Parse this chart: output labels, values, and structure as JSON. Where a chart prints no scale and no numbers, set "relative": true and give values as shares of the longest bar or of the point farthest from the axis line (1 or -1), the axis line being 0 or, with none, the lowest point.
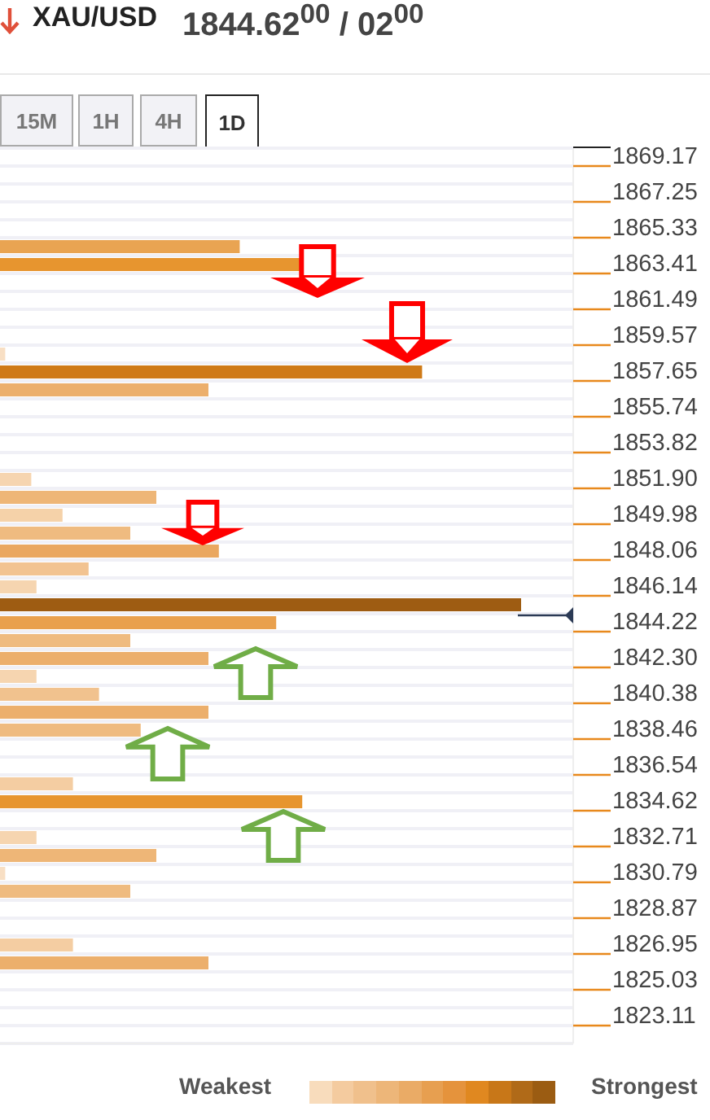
{
  "chart_data": {
    "type": "bar",
    "orientation": "horizontal",
    "relative": true,
    "title": "XAU/USD",
    "annotations": [
      "1844.62$^{00}$ / 02$^{00}$",
      "15M",
      "1H",
      "4H",
      "1D",
      "Weakest",
      "Strongest"
    ],
    "categories": [
      "1869.17",
      null,
      "1867.25",
      null,
      "1865.33",
      null,
      "1863.41",
      null,
      "1861.49",
      null,
      "1859.57",
      null,
      "1857.65",
      null,
      "1855.74",
      null,
      "1853.82",
      null,
      "1851.90",
      null,
      "1849.98",
      null,
      "1848.06",
      null,
      "1846.14",
      null,
      "1844.22",
      null,
      "1842.30",
      null,
      "1840.38",
      null,
      "1838.46",
      null,
      "1836.54",
      null,
      "1834.62",
      null,
      "1832.71",
      null,
      "1830.79",
      null,
      "1828.87",
      null,
      "1826.95",
      null,
      "1825.03",
      null,
      "1823.11",
      null
    ],
    "values": [
      null,
      null,
      null,
      null,
      null,
      0.46,
      0.58,
      null,
      null,
      null,
      null,
      0.01,
      0.81,
      0.4,
      null,
      null,
      null,
      null,
      0.06,
      0.3,
      0.12,
      0.25,
      0.42,
      0.17,
      0.07,
      1,
      0.53,
      0.25,
      0.4,
      0.07,
      0.19,
      0.4,
      0.27,
      null,
      null,
      0.14,
      0.58,
      null,
      0.07,
      0.3,
      0.01,
      0.25,
      null,
      null,
      0.14,
      0.4,
      null,
      null,
      null,
      null
    ],
    "colors": [
      null,
      null,
      null,
      null,
      null,
      "#e9a452",
      "#e7952f",
      null,
      null,
      null,
      null,
      "#f8dfc4",
      "#cf7a17",
      "#ecaf6c",
      null,
      null,
      null,
      null,
      "#f6d5b0",
      "#eeb677",
      "#f5d2a9",
      "#efbb80",
      "#eaa75f",
      "#f2c391",
      "#f6d5b0",
      "#9e5c12",
      "#e9a04d",
      "#efbb80",
      "#ecaf6c",
      "#f6d5b0",
      "#f1c28e",
      "#ecaf6c",
      "#efbb80",
      null,
      null,
      "#f4cda2",
      "#e7952f",
      null,
      "#f6d5b0",
      "#eeb677",
      "#f8dfc4",
      "#efbb80",
      null,
      null,
      "#f4cda2",
      "#ecaf6c",
      null,
      null,
      null,
      null
    ],
    "grid": true
  }
}
